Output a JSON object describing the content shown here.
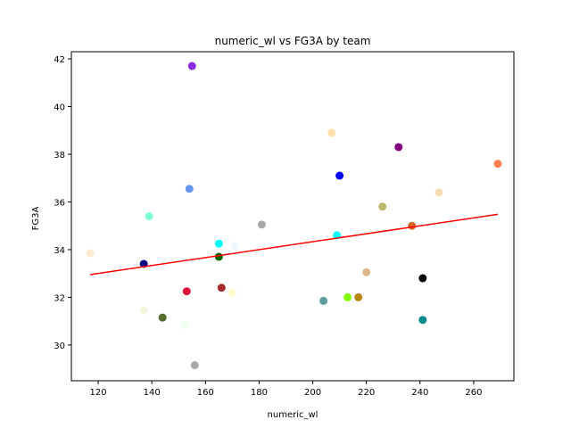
{
  "chart_data": {
    "type": "scatter",
    "title": "numeric_wl vs FG3A by team",
    "xlabel": "numeric_wl",
    "ylabel": "FG3A",
    "xlim": [
      110,
      275
    ],
    "ylim": [
      28.5,
      42.3
    ],
    "xticks": [
      120,
      140,
      160,
      180,
      200,
      220,
      240,
      260
    ],
    "yticks": [
      30,
      32,
      34,
      36,
      38,
      40,
      42
    ],
    "grid": false,
    "points": [
      {
        "x": 155,
        "y": 41.7,
        "color": "#8a2be2"
      },
      {
        "x": 207,
        "y": 38.9,
        "color": "#ffdead"
      },
      {
        "x": 232,
        "y": 38.3,
        "color": "#800080"
      },
      {
        "x": 269,
        "y": 37.6,
        "color": "#ff7f50"
      },
      {
        "x": 210,
        "y": 37.1,
        "color": "#0000ff"
      },
      {
        "x": 154,
        "y": 36.55,
        "color": "#6495ed"
      },
      {
        "x": 247,
        "y": 36.4,
        "color": "#f5deb3"
      },
      {
        "x": 226,
        "y": 35.8,
        "color": "#bdb76b"
      },
      {
        "x": 139,
        "y": 35.4,
        "color": "#7fffd4"
      },
      {
        "x": 181,
        "y": 35.05,
        "color": "#a9a9a9"
      },
      {
        "x": 237,
        "y": 35.0,
        "color": "#d2691e"
      },
      {
        "x": 117,
        "y": 33.85,
        "color": "#ffebcd"
      },
      {
        "x": 209,
        "y": 34.6,
        "color": "#00ffff"
      },
      {
        "x": 165,
        "y": 34.25,
        "color": "#00ffff"
      },
      {
        "x": 171,
        "y": 34.15,
        "color": "#f0f8ff"
      },
      {
        "x": 165,
        "y": 33.7,
        "color": "#006400"
      },
      {
        "x": 137,
        "y": 33.4,
        "color": "#000080"
      },
      {
        "x": 220,
        "y": 33.05,
        "color": "#deb887"
      },
      {
        "x": 241,
        "y": 32.8,
        "color": "#000000"
      },
      {
        "x": 166,
        "y": 32.4,
        "color": "#a52a2a"
      },
      {
        "x": 153,
        "y": 32.25,
        "color": "#dc143c"
      },
      {
        "x": 170,
        "y": 32.2,
        "color": "#fffacd"
      },
      {
        "x": 213,
        "y": 32.0,
        "color": "#7fff00"
      },
      {
        "x": 217,
        "y": 32.0,
        "color": "#b8860b"
      },
      {
        "x": 204,
        "y": 31.85,
        "color": "#5f9ea0"
      },
      {
        "x": 137,
        "y": 31.45,
        "color": "#f5f5dc"
      },
      {
        "x": 144,
        "y": 31.15,
        "color": "#556b2f"
      },
      {
        "x": 241,
        "y": 31.05,
        "color": "#008b8b"
      },
      {
        "x": 152,
        "y": 30.85,
        "color": "#f0fff0"
      },
      {
        "x": 156,
        "y": 29.15,
        "color": "#a9a9a9"
      }
    ],
    "trendline": {
      "x": [
        117,
        269
      ],
      "y": [
        32.95,
        35.48
      ],
      "color": "#ff0000"
    }
  }
}
